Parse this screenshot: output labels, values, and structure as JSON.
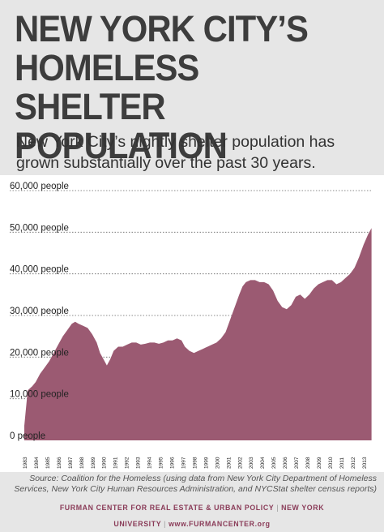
{
  "title_lines": [
    "NEW YORK CITY’S",
    "HOMELESS SHELTER",
    "POPULATION"
  ],
  "subtitle": "New York City’s nightly shelter population has grown substantially over the past 30 years.",
  "source": "Source: Coalition for the Homeless (using data from New York City Department of Homeless Services, New York City Human Resources Administration, and NYCStat shelter census reports)",
  "footer": {
    "org": "FURMAN CENTER FOR REAL ESTATE & URBAN POLICY",
    "university": "NEW YORK UNIVERSITY",
    "url": "www.FURMANCENTER.org"
  },
  "colors": {
    "area": "#9b5a72",
    "title": "#3d3d3d",
    "footer": "#8a3b58",
    "background": "#e6e6e6"
  },
  "chart_data": {
    "type": "area",
    "title": "",
    "xlabel": "",
    "ylabel": "",
    "ylim": [
      0,
      60000
    ],
    "xlim": [
      1983,
      2013.8
    ],
    "grid": true,
    "y_ticks": [
      {
        "value": 0,
        "label": "0 people"
      },
      {
        "value": 10000,
        "label": "10,000 people"
      },
      {
        "value": 20000,
        "label": "20,000 people"
      },
      {
        "value": 30000,
        "label": "30,000 people"
      },
      {
        "value": 40000,
        "label": "40,000 people"
      },
      {
        "value": 50000,
        "label": "50,000 people"
      },
      {
        "value": 60000,
        "label": "60,000 people"
      }
    ],
    "x_ticks": [
      "1983",
      "1984",
      "1985",
      "1986",
      "1987",
      "1988",
      "1989",
      "1990",
      "1991",
      "1992",
      "1993",
      "1994",
      "1995",
      "1996",
      "1997",
      "1998",
      "1999",
      "2000",
      "2001",
      "2002",
      "2003",
      "2004",
      "2005",
      "2006",
      "2007",
      "2008",
      "2009",
      "2010",
      "2011",
      "2012",
      "2013"
    ],
    "series": [
      {
        "points": [
          [
            1983.0,
            3500
          ],
          [
            1983.3,
            12000
          ],
          [
            1983.7,
            13000
          ],
          [
            1984.0,
            14000
          ],
          [
            1984.4,
            16000
          ],
          [
            1984.8,
            17500
          ],
          [
            1985.2,
            19000
          ],
          [
            1985.6,
            21000
          ],
          [
            1986.0,
            23000
          ],
          [
            1986.4,
            25000
          ],
          [
            1986.8,
            26500
          ],
          [
            1987.2,
            28000
          ],
          [
            1987.5,
            28500
          ],
          [
            1987.8,
            28000
          ],
          [
            1988.2,
            27500
          ],
          [
            1988.6,
            27000
          ],
          [
            1989.0,
            25500
          ],
          [
            1989.4,
            23500
          ],
          [
            1989.7,
            21000
          ],
          [
            1990.0,
            19500
          ],
          [
            1990.3,
            18000
          ],
          [
            1990.6,
            19500
          ],
          [
            1990.9,
            21500
          ],
          [
            1991.3,
            22500
          ],
          [
            1991.7,
            22500
          ],
          [
            1992.1,
            23000
          ],
          [
            1992.5,
            23500
          ],
          [
            1992.9,
            23500
          ],
          [
            1993.3,
            23000
          ],
          [
            1993.7,
            23200
          ],
          [
            1994.1,
            23500
          ],
          [
            1994.5,
            23500
          ],
          [
            1994.9,
            23200
          ],
          [
            1995.3,
            23500
          ],
          [
            1995.7,
            24000
          ],
          [
            1996.1,
            24000
          ],
          [
            1996.5,
            24500
          ],
          [
            1996.9,
            24000
          ],
          [
            1997.2,
            22500
          ],
          [
            1997.6,
            21500
          ],
          [
            1998.0,
            21000
          ],
          [
            1998.4,
            21500
          ],
          [
            1998.8,
            22000
          ],
          [
            1999.2,
            22500
          ],
          [
            1999.6,
            23000
          ],
          [
            2000.0,
            23500
          ],
          [
            2000.4,
            24500
          ],
          [
            2000.8,
            26000
          ],
          [
            2001.2,
            29000
          ],
          [
            2001.6,
            32000
          ],
          [
            2002.0,
            35000
          ],
          [
            2002.3,
            37000
          ],
          [
            2002.6,
            38000
          ],
          [
            2003.0,
            38500
          ],
          [
            2003.4,
            38500
          ],
          [
            2003.8,
            38000
          ],
          [
            2004.2,
            38000
          ],
          [
            2004.6,
            37500
          ],
          [
            2005.0,
            36000
          ],
          [
            2005.4,
            33500
          ],
          [
            2005.8,
            32000
          ],
          [
            2006.2,
            31500
          ],
          [
            2006.6,
            32500
          ],
          [
            2007.0,
            34500
          ],
          [
            2007.4,
            35000
          ],
          [
            2007.8,
            34000
          ],
          [
            2008.2,
            35000
          ],
          [
            2008.6,
            36500
          ],
          [
            2009.0,
            37500
          ],
          [
            2009.4,
            38000
          ],
          [
            2009.8,
            38500
          ],
          [
            2010.2,
            38500
          ],
          [
            2010.6,
            37500
          ],
          [
            2011.0,
            38000
          ],
          [
            2011.4,
            39000
          ],
          [
            2011.8,
            40000
          ],
          [
            2012.2,
            41500
          ],
          [
            2012.6,
            44000
          ],
          [
            2013.0,
            47000
          ],
          [
            2013.4,
            49500
          ],
          [
            2013.7,
            51000
          ]
        ]
      }
    ]
  }
}
